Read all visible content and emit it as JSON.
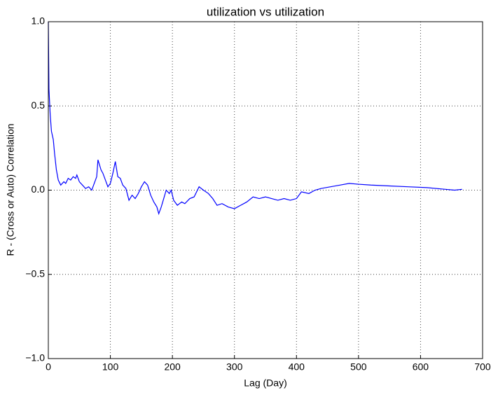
{
  "chart_data": {
    "type": "line",
    "title": "utilization vs utilization",
    "xlabel": "Lag (Day)",
    "ylabel": "R - (Cross or Auto) Correlation",
    "x": [
      0,
      1,
      3,
      5,
      8,
      10,
      13,
      16,
      20,
      25,
      28,
      32,
      36,
      40,
      44,
      46,
      50,
      55,
      60,
      65,
      70,
      75,
      78,
      80,
      85,
      88,
      92,
      96,
      100,
      104,
      108,
      112,
      116,
      120,
      125,
      130,
      135,
      140,
      145,
      150,
      155,
      160,
      165,
      170,
      175,
      178,
      182,
      186,
      190,
      195,
      198,
      202,
      208,
      215,
      220,
      228,
      235,
      243,
      250,
      258,
      265,
      272,
      280,
      290,
      300,
      310,
      320,
      330,
      340,
      350,
      360,
      370,
      380,
      390,
      400,
      408,
      420,
      430,
      440,
      455,
      470,
      485,
      500,
      520,
      550,
      580,
      610,
      640,
      655,
      667
    ],
    "series": [
      {
        "name": "utilization",
        "color": "#0000ff",
        "values": [
          1.0,
          0.6,
          0.45,
          0.35,
          0.3,
          0.22,
          0.12,
          0.06,
          0.03,
          0.05,
          0.04,
          0.07,
          0.06,
          0.08,
          0.07,
          0.09,
          0.05,
          0.03,
          0.01,
          0.02,
          0.0,
          0.05,
          0.08,
          0.18,
          0.12,
          0.1,
          0.06,
          0.02,
          0.04,
          0.1,
          0.17,
          0.08,
          0.07,
          0.03,
          0.01,
          -0.06,
          -0.03,
          -0.05,
          -0.02,
          0.02,
          0.05,
          0.03,
          -0.03,
          -0.07,
          -0.1,
          -0.14,
          -0.1,
          -0.05,
          0.0,
          -0.02,
          0.0,
          -0.06,
          -0.09,
          -0.07,
          -0.08,
          -0.05,
          -0.04,
          0.02,
          0.0,
          -0.02,
          -0.05,
          -0.09,
          -0.08,
          -0.1,
          -0.11,
          -0.09,
          -0.07,
          -0.04,
          -0.05,
          -0.04,
          -0.05,
          -0.06,
          -0.05,
          -0.06,
          -0.05,
          -0.01,
          -0.02,
          0.0,
          0.01,
          0.02,
          0.03,
          0.04,
          0.035,
          0.03,
          0.025,
          0.02,
          0.015,
          0.005,
          0.0,
          0.005
        ]
      }
    ],
    "xlim": [
      0,
      700
    ],
    "xticks": [
      0,
      100,
      200,
      300,
      400,
      500,
      600,
      700
    ],
    "ylim": [
      -1,
      1
    ],
    "yticks": [
      {
        "value": -1,
        "label": "−1.0"
      },
      {
        "value": -0.5,
        "label": "−0.5"
      },
      {
        "value": 0,
        "label": "0.0"
      },
      {
        "value": 0.5,
        "label": "0.5"
      },
      {
        "value": 1,
        "label": "1.0"
      }
    ],
    "grid": true
  }
}
